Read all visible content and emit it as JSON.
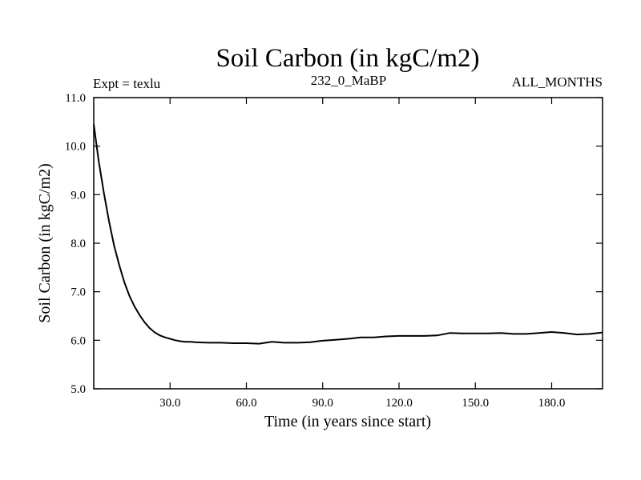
{
  "chart_data": {
    "type": "line",
    "title": "Soil Carbon (in kgC/m2)",
    "left_label": "Expt = texlu",
    "center_label": "232_0_MaBP",
    "right_label": "ALL_MONTHS",
    "xlabel": "Time (in years since start)",
    "ylabel": "Soil Carbon (in kgC/m2)",
    "xlim": [
      0,
      200
    ],
    "ylim": [
      5.0,
      11.0
    ],
    "xticks": [
      30,
      60,
      90,
      120,
      150,
      180
    ],
    "xtick_labels": [
      "30.0",
      "60.0",
      "90.0",
      "120.0",
      "150.0",
      "180.0"
    ],
    "yticks": [
      5,
      6,
      7,
      8,
      9,
      10,
      11
    ],
    "ytick_labels": [
      "5.0",
      "6.0",
      "7.0",
      "8.0",
      "9.0",
      "10.0",
      "11.0"
    ],
    "grid": false,
    "series": [
      {
        "name": "Soil Carbon",
        "color": "#000000",
        "x": [
          0,
          2,
          4,
          6,
          8,
          10,
          12,
          14,
          16,
          18,
          20,
          22,
          24,
          26,
          28,
          30,
          32,
          34,
          36,
          38,
          40,
          45,
          50,
          55,
          60,
          65,
          70,
          75,
          80,
          85,
          90,
          95,
          100,
          105,
          110,
          115,
          120,
          125,
          130,
          135,
          140,
          145,
          150,
          155,
          160,
          165,
          170,
          175,
          180,
          185,
          190,
          195,
          200
        ],
        "values": [
          10.45,
          9.68,
          9.03,
          8.45,
          7.95,
          7.55,
          7.2,
          6.92,
          6.7,
          6.52,
          6.37,
          6.25,
          6.16,
          6.1,
          6.06,
          6.03,
          6.0,
          5.98,
          5.97,
          5.97,
          5.96,
          5.95,
          5.95,
          5.94,
          5.94,
          5.93,
          5.97,
          5.95,
          5.95,
          5.96,
          5.99,
          6.01,
          6.03,
          6.06,
          6.06,
          6.08,
          6.09,
          6.09,
          6.09,
          6.1,
          6.15,
          6.14,
          6.14,
          6.14,
          6.15,
          6.13,
          6.13,
          6.15,
          6.17,
          6.15,
          6.12,
          6.13,
          6.16
        ]
      }
    ]
  }
}
